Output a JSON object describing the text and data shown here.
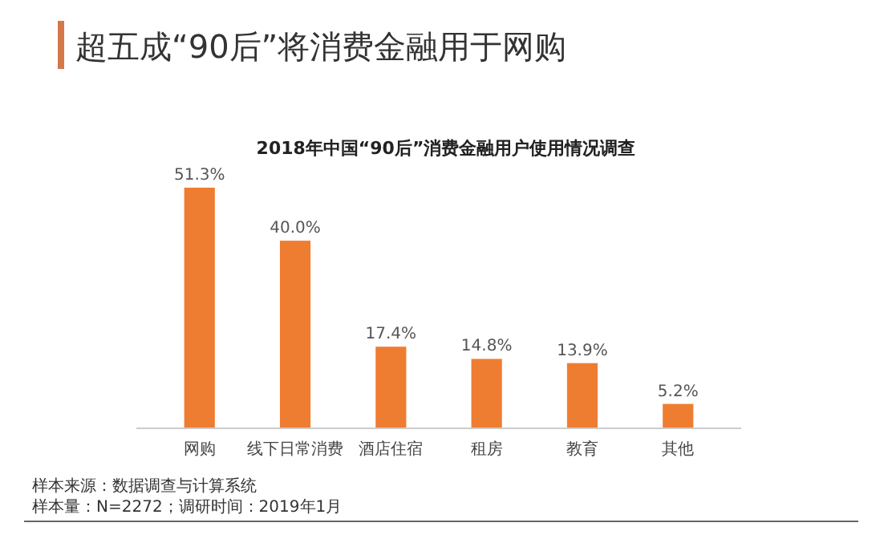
{
  "chart_data": {
    "type": "bar",
    "title": "超五成“90后”将消费金融用于网购",
    "subtitle": "2018年中国“90后”消费金融用户使用情况调查",
    "categories": [
      "网购",
      "线下日常消费",
      "酒店住宿",
      "租房",
      "教育",
      "其他"
    ],
    "values": [
      51.3,
      40.0,
      17.4,
      14.8,
      13.9,
      5.2
    ],
    "value_labels": [
      "51.3%",
      "40.0%",
      "17.4%",
      "14.8%",
      "13.9%",
      "5.2%"
    ],
    "color": "#ef7d31",
    "annotations": [
      "样本来源：数据调查与计算系统",
      "样本量：N=2272；调研时间：2019年1月"
    ]
  }
}
